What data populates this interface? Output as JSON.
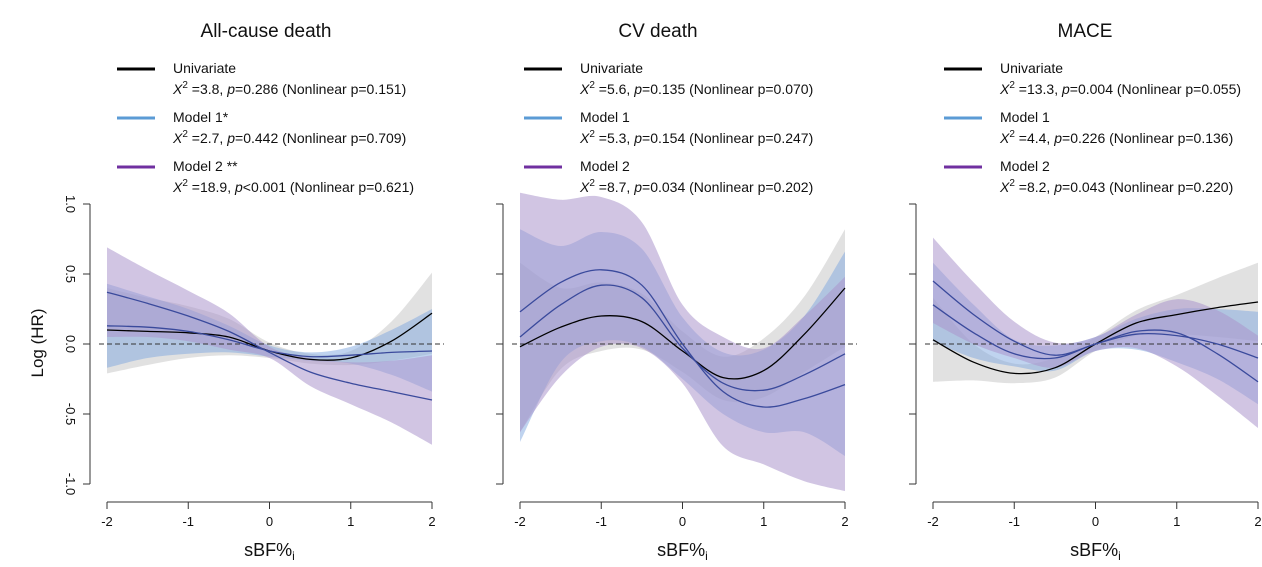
{
  "figure": {
    "ylabel": "Log (HR)",
    "y_axis_panels": [
      0,
      1,
      2
    ]
  },
  "styles": {
    "colors": {
      "univariate": "#000000",
      "model1": "#5b9bd5",
      "model2": "#7030a0",
      "band_univariate": "#c8c8c8",
      "band_model1": "#7fa8e0",
      "band_model2": "#ac96cc",
      "curve_model": "#3a4a9c"
    }
  },
  "chart_data": [
    {
      "type": "line",
      "title": "All-cause death",
      "xlabel": "sBF%",
      "xlabel_sub": "i",
      "ylabel": "Log (HR)",
      "xlim": [
        -2,
        2
      ],
      "ylim": [
        -1.0,
        1.0
      ],
      "xticks": [
        "-2",
        "-1",
        "0",
        "1",
        "2"
      ],
      "yticks": [
        "-1.0",
        "-0.5",
        "0.0",
        "0.5",
        "1.0"
      ],
      "reference_line": 0,
      "grid": false,
      "legend_position": "top",
      "legend": [
        {
          "name": "Univariate",
          "chi": "=3.8, ",
          "p_label": "p",
          "p_value": "=0.286",
          "nonlinear": " (Nonlinear p=0.151)",
          "color": "#000000"
        },
        {
          "name": "Model 1*",
          "chi": "=2.7, ",
          "p_label": "p",
          "p_value": "=0.442",
          "nonlinear": " (Nonlinear p=0.709)",
          "color": "#5b9bd5"
        },
        {
          "name": "Model 2 **",
          "chi": "=18.9, ",
          "p_label": "p",
          "p_value": "<0.001",
          "nonlinear": " (Nonlinear p=0.621)",
          "color": "#7030a0"
        }
      ],
      "x": [
        -2,
        -1.5,
        -1,
        -0.5,
        0,
        0.5,
        1,
        1.5,
        2
      ],
      "series": [
        {
          "name": "Univariate",
          "values": [
            0.1,
            0.09,
            0.08,
            0.05,
            -0.05,
            -0.11,
            -0.1,
            0.02,
            0.22
          ],
          "lower": [
            -0.21,
            -0.15,
            -0.1,
            -0.08,
            -0.1,
            -0.14,
            -0.15,
            -0.12,
            -0.07
          ],
          "upper": [
            0.4,
            0.33,
            0.27,
            0.18,
            0.01,
            -0.07,
            -0.05,
            0.16,
            0.51
          ]
        },
        {
          "name": "Model 1*",
          "values": [
            0.13,
            0.12,
            0.09,
            0.03,
            -0.05,
            -0.09,
            -0.08,
            -0.06,
            -0.05
          ],
          "lower": [
            -0.17,
            -0.1,
            -0.07,
            -0.06,
            -0.09,
            -0.12,
            -0.14,
            -0.22,
            -0.34
          ],
          "upper": [
            0.43,
            0.34,
            0.25,
            0.13,
            -0.01,
            -0.06,
            -0.02,
            0.1,
            0.25
          ]
        },
        {
          "name": "Model 2 **",
          "values": [
            0.37,
            0.29,
            0.2,
            0.09,
            -0.06,
            -0.2,
            -0.28,
            -0.34,
            -0.4
          ],
          "lower": [
            0.05,
            0.05,
            0.02,
            -0.04,
            -0.1,
            -0.3,
            -0.43,
            -0.56,
            -0.72
          ],
          "upper": [
            0.69,
            0.53,
            0.38,
            0.22,
            -0.02,
            -0.1,
            -0.13,
            -0.12,
            -0.08
          ]
        }
      ]
    },
    {
      "type": "line",
      "title": "CV death",
      "xlabel": "sBF%",
      "xlabel_sub": "i",
      "ylabel": "Log (HR)",
      "xlim": [
        -2,
        2
      ],
      "ylim": [
        -1.0,
        1.0
      ],
      "xticks": [
        "-2",
        "-1",
        "0",
        "1",
        "2"
      ],
      "yticks": [
        "-1.0",
        "-0.5",
        "0.0",
        "0.5",
        "1.0"
      ],
      "reference_line": 0,
      "grid": false,
      "legend_position": "top",
      "legend": [
        {
          "name": "Univariate",
          "chi": "=5.6, ",
          "p_label": "p",
          "p_value": "=0.135",
          "nonlinear": " (Nonlinear p=0.070)",
          "color": "#000000"
        },
        {
          "name": "Model 1",
          "chi": "=5.3, ",
          "p_label": "p",
          "p_value": "=0.154",
          "nonlinear": " (Nonlinear p=0.247)",
          "color": "#5b9bd5"
        },
        {
          "name": "Model 2",
          "chi": "=8.7, ",
          "p_label": "p",
          "p_value": "=0.034",
          "nonlinear": " (Nonlinear p=0.202)",
          "color": "#7030a0"
        }
      ],
      "x": [
        -2,
        -1.5,
        -1,
        -0.5,
        0,
        0.5,
        1,
        1.5,
        2
      ],
      "series": [
        {
          "name": "Univariate",
          "values": [
            -0.02,
            0.12,
            0.2,
            0.16,
            -0.05,
            -0.24,
            -0.19,
            0.07,
            0.4
          ],
          "lower": [
            -0.63,
            -0.18,
            -0.05,
            -0.04,
            -0.2,
            -0.4,
            -0.38,
            -0.2,
            -0.02
          ],
          "upper": [
            0.58,
            0.4,
            0.44,
            0.36,
            0.09,
            -0.09,
            0.04,
            0.34,
            0.82
          ]
        },
        {
          "name": "Model 1",
          "values": [
            0.05,
            0.28,
            0.42,
            0.33,
            -0.03,
            -0.28,
            -0.33,
            -0.22,
            -0.07
          ],
          "lower": [
            -0.7,
            -0.13,
            0.02,
            -0.02,
            -0.25,
            -0.5,
            -0.63,
            -0.63,
            -0.8
          ],
          "upper": [
            0.82,
            0.7,
            0.8,
            0.68,
            0.19,
            -0.06,
            -0.04,
            0.2,
            0.66
          ]
        },
        {
          "name": "Model 2",
          "values": [
            0.23,
            0.44,
            0.53,
            0.42,
            0.0,
            -0.34,
            -0.45,
            -0.39,
            -0.29
          ],
          "lower": [
            -0.63,
            -0.23,
            -0.02,
            -0.03,
            -0.28,
            -0.73,
            -0.86,
            -0.98,
            -1.05
          ],
          "upper": [
            1.08,
            1.03,
            1.05,
            0.87,
            0.28,
            0.05,
            -0.03,
            0.2,
            0.48
          ]
        }
      ]
    },
    {
      "type": "line",
      "title": "MACE",
      "xlabel": "sBF%",
      "xlabel_sub": "i",
      "ylabel": "Log (HR)",
      "xlim": [
        -2,
        2
      ],
      "ylim": [
        -1.0,
        1.0
      ],
      "xticks": [
        "-2",
        "-1",
        "0",
        "1",
        "2"
      ],
      "yticks": [
        "-1.0",
        "-0.5",
        "0.0",
        "0.5",
        "1.0"
      ],
      "reference_line": 0,
      "grid": false,
      "legend_position": "top",
      "legend": [
        {
          "name": "Univariate",
          "chi": "=13.3, ",
          "p_label": "p",
          "p_value": "=0.004",
          "nonlinear": " (Nonlinear p=0.055)",
          "color": "#000000"
        },
        {
          "name": "Model 1",
          "chi": "=4.4, ",
          "p_label": "p",
          "p_value": "=0.226",
          "nonlinear": " (Nonlinear p=0.136)",
          "color": "#5b9bd5"
        },
        {
          "name": "Model 2",
          "chi": "=8.2, ",
          "p_label": "p",
          "p_value": "=0.043",
          "nonlinear": " (Nonlinear p=0.220)",
          "color": "#7030a0"
        }
      ],
      "x": [
        -2,
        -1.5,
        -1,
        -0.5,
        0,
        0.5,
        1,
        1.5,
        2
      ],
      "series": [
        {
          "name": "Univariate",
          "values": [
            0.03,
            -0.13,
            -0.21,
            -0.17,
            0.0,
            0.15,
            0.21,
            0.26,
            0.3
          ],
          "lower": [
            -0.27,
            -0.26,
            -0.28,
            -0.24,
            -0.05,
            0.06,
            0.07,
            0.05,
            0.02
          ],
          "upper": [
            0.33,
            0.0,
            -0.14,
            -0.1,
            0.05,
            0.24,
            0.35,
            0.47,
            0.58
          ]
        },
        {
          "name": "Model 1",
          "values": [
            0.28,
            0.08,
            -0.07,
            -0.1,
            0.0,
            0.07,
            0.06,
            0.0,
            -0.1
          ],
          "lower": [
            0.02,
            -0.1,
            -0.16,
            -0.19,
            -0.05,
            -0.04,
            -0.13,
            -0.25,
            -0.43
          ],
          "upper": [
            0.58,
            0.28,
            0.03,
            -0.01,
            0.05,
            0.18,
            0.25,
            0.25,
            0.23
          ]
        },
        {
          "name": "Model 2",
          "values": [
            0.45,
            0.21,
            0.02,
            -0.08,
            0.0,
            0.09,
            0.08,
            -0.07,
            -0.27
          ],
          "lower": [
            0.15,
            0.0,
            -0.1,
            -0.17,
            -0.05,
            -0.03,
            -0.16,
            -0.37,
            -0.6
          ],
          "upper": [
            0.76,
            0.44,
            0.16,
            0.01,
            0.05,
            0.21,
            0.32,
            0.24,
            0.06
          ]
        }
      ]
    }
  ]
}
